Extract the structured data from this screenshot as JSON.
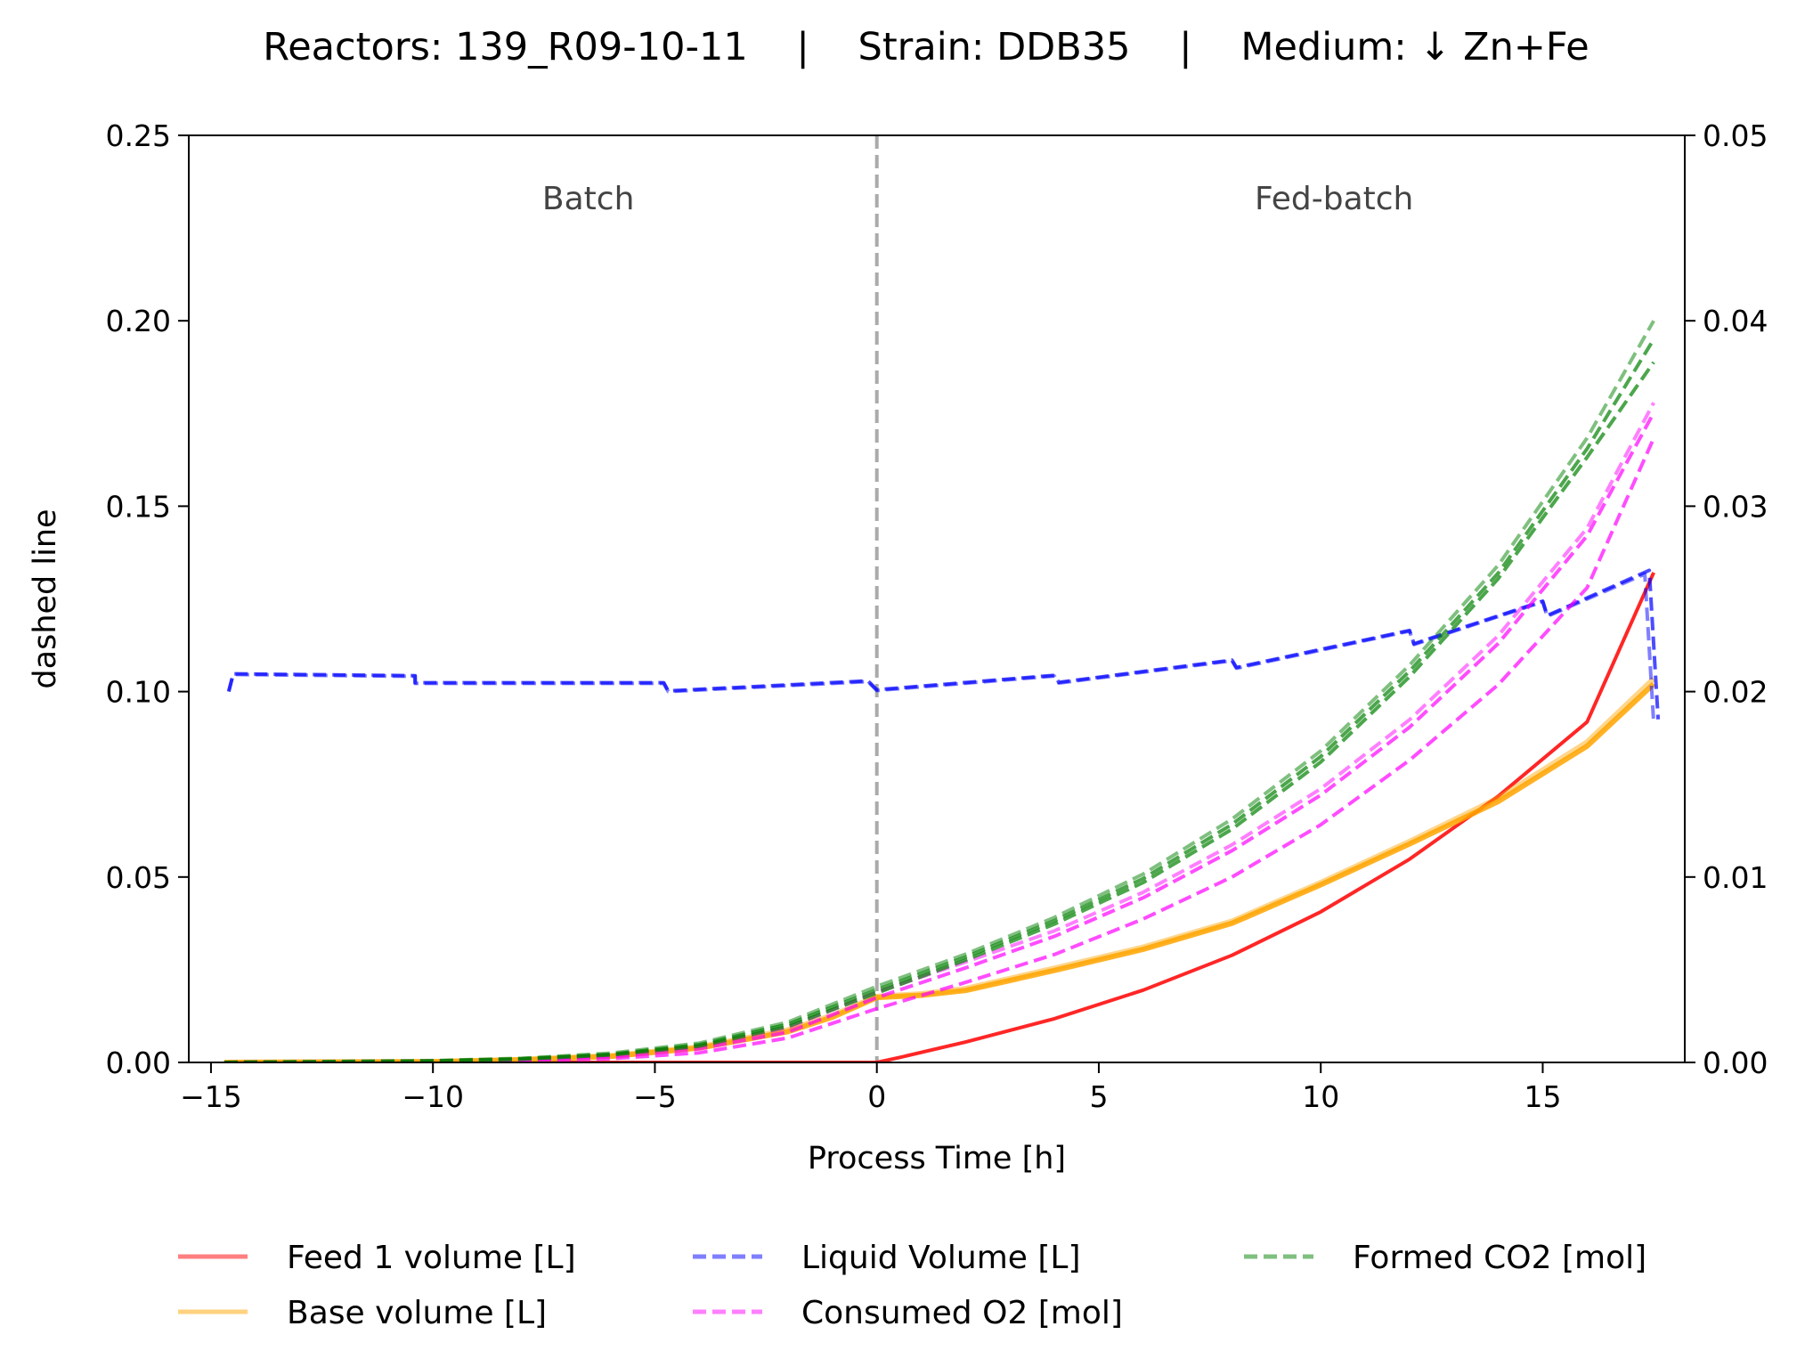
{
  "chart_data": {
    "type": "line",
    "title": "Reactors: 139_R09-10-11    |    Strain: DDB35    |    Medium: ↓ Zn+Fe",
    "xlabel": "Process Time [h]",
    "ylabel": "dashed line",
    "xlim": [
      -15.5,
      18.2
    ],
    "ylim": [
      0,
      0.25
    ],
    "y2lim": [
      0,
      0.05
    ],
    "x_ticks": [
      -15,
      -10,
      -5,
      0,
      5,
      10,
      15
    ],
    "x_tick_labels": [
      "−15",
      "−10",
      "−5",
      "0",
      "5",
      "10",
      "15"
    ],
    "y_ticks": [
      0,
      0.05,
      0.1,
      0.15,
      0.2,
      0.25
    ],
    "y_tick_labels": [
      "0.00",
      "0.05",
      "0.10",
      "0.15",
      "0.20",
      "0.25"
    ],
    "y2_ticks": [
      0,
      0.01,
      0.02,
      0.03,
      0.04,
      0.05
    ],
    "y2_tick_labels": [
      "0.00",
      "0.01",
      "0.02",
      "0.03",
      "0.04",
      "0.05"
    ],
    "grid": false,
    "legend_position": "bottom-center",
    "phase_divider_x": 0,
    "phases": [
      {
        "label": "Batch",
        "x": -6.5
      },
      {
        "label": "Fed-batch",
        "x": 10.3
      }
    ],
    "series": [
      {
        "name": "Feed 1 volume [L]",
        "axis": "left",
        "style": "solid",
        "color": "#ff0000",
        "legend_alpha": 0.5,
        "lines": [
          {
            "x": [
              -14.7,
              -10,
              -5,
              -2,
              0,
              0.5,
              2,
              4,
              6,
              8,
              10,
              12,
              14,
              16,
              17.5
            ],
            "y": [
              0,
              0,
              0,
              0,
              0,
              0.0013,
              0.0055,
              0.0118,
              0.0195,
              0.0289,
              0.0406,
              0.0548,
              0.0718,
              0.0918,
              0.1321
            ]
          }
        ]
      },
      {
        "name": "Base volume [L]",
        "axis": "left",
        "style": "solid",
        "color": "#ffa500",
        "legend_alpha": 0.5,
        "lines": [
          {
            "x": [
              -14.7,
              -10,
              -8,
              -6,
              -4,
              -2,
              -1,
              0,
              1,
              2,
              4,
              6,
              8,
              10,
              12,
              14,
              16,
              17.5
            ],
            "y": [
              0,
              0.0002,
              0.0007,
              0.0016,
              0.0039,
              0.0083,
              0.0122,
              0.0175,
              0.0181,
              0.0194,
              0.0248,
              0.0305,
              0.0375,
              0.0479,
              0.0589,
              0.0704,
              0.0853,
              0.1021
            ]
          },
          {
            "x": [
              -14.7,
              -10,
              -8,
              -6,
              -4,
              -2,
              -1,
              0,
              1,
              2,
              4,
              6,
              8,
              10,
              12,
              14,
              16,
              17.5
            ],
            "y": [
              0,
              0.0002,
              0.0008,
              0.0018,
              0.0042,
              0.0088,
              0.0127,
              0.0178,
              0.0185,
              0.0199,
              0.0254,
              0.0311,
              0.0381,
              0.0485,
              0.0596,
              0.0713,
              0.0864,
              0.1035
            ]
          }
        ]
      },
      {
        "name": "Liquid Volume [L]",
        "axis": "left",
        "style": "dashed",
        "color": "#0000ff",
        "legend_alpha": 0.5,
        "lines": [
          {
            "x": [
              -14.6,
              -14.5,
              -10.4,
              -10.4,
              -4.8,
              -4.7,
              -0.2,
              0,
              4,
              4.1,
              8,
              8.1,
              12,
              12.1,
              15,
              15.1,
              17.3,
              17.5
            ],
            "y": [
              0.1002,
              0.1046,
              0.1041,
              0.1022,
              0.1022,
              0.1,
              0.1027,
              0.1003,
              0.1042,
              0.1023,
              0.1083,
              0.1063,
              0.1163,
              0.1127,
              0.1242,
              0.1203,
              0.1317,
              0.0915
            ]
          },
          {
            "x": [
              -14.6,
              -14.5,
              -10.4,
              -10.4,
              -4.8,
              -4.7,
              -0.2,
              0,
              4,
              4.1,
              8,
              8.1,
              12,
              12.1,
              15,
              15.1,
              17.4,
              17.6
            ],
            "y": [
              0.1,
              0.1048,
              0.1043,
              0.1024,
              0.1024,
              0.1002,
              0.1029,
              0.1005,
              0.1044,
              0.1025,
              0.1085,
              0.1065,
              0.1165,
              0.1129,
              0.1244,
              0.1205,
              0.1327,
              0.0925
            ]
          }
        ]
      },
      {
        "name": "Consumed O2 [mol]",
        "axis": "left",
        "style": "dashed",
        "color": "#ff00ff",
        "legend_alpha": 0.5,
        "lines": [
          {
            "x": [
              -14.7,
              -10,
              -8,
              -6,
              -4,
              -2,
              0,
              2,
              4,
              6,
              8,
              10,
              12,
              14,
              16,
              17.5
            ],
            "y": [
              0,
              0.0004,
              0.0009,
              0.0021,
              0.0044,
              0.0094,
              0.019,
              0.0271,
              0.0355,
              0.0459,
              0.0587,
              0.0738,
              0.0924,
              0.1151,
              0.1441,
              0.1779
            ]
          },
          {
            "x": [
              -14.7,
              -10,
              -8,
              -6,
              -4,
              -2,
              0,
              2,
              4,
              6,
              8,
              10,
              12,
              14,
              16,
              17.5
            ],
            "y": [
              0,
              0.0002,
              0.0004,
              0.001,
              0.0026,
              0.0066,
              0.0145,
              0.0216,
              0.0291,
              0.0387,
              0.05,
              0.0641,
              0.0815,
              0.1019,
              0.128,
              0.1683
            ]
          },
          {
            "x": [
              -14.7,
              -10,
              -8,
              -6,
              -4,
              -2,
              0,
              2,
              4,
              6,
              8,
              10,
              12,
              14,
              16,
              17.5
            ],
            "y": [
              0,
              0.0003,
              0.0007,
              0.0016,
              0.0037,
              0.0082,
              0.0175,
              0.0255,
              0.034,
              0.0444,
              0.0571,
              0.0721,
              0.0904,
              0.113,
              0.142,
              0.1752
            ]
          }
        ]
      },
      {
        "name": "Formed CO2 [mol]",
        "axis": "left",
        "style": "dashed",
        "color": "#008000",
        "legend_alpha": 0.5,
        "lines": [
          {
            "x": [
              -14.7,
              -10,
              -8,
              -6,
              -4,
              -2,
              0,
              2,
              4,
              6,
              8,
              10,
              12,
              14,
              16,
              17.5
            ],
            "y": [
              0,
              0.0005,
              0.0011,
              0.0025,
              0.0052,
              0.0109,
              0.0205,
              0.0292,
              0.0391,
              0.0508,
              0.0656,
              0.084,
              0.1071,
              0.1341,
              0.1684,
              0.2
            ]
          },
          {
            "x": [
              -14.7,
              -10,
              -8,
              -6,
              -4,
              -2,
              0,
              2,
              4,
              6,
              8,
              10,
              12,
              14,
              16,
              17.5
            ],
            "y": [
              0,
              0.0003,
              0.0009,
              0.002,
              0.0044,
              0.0097,
              0.0187,
              0.0276,
              0.0373,
              0.0485,
              0.0629,
              0.081,
              0.104,
              0.1305,
              0.1632,
              0.1888
            ]
          },
          {
            "x": [
              -14.7,
              -10,
              -8,
              -6,
              -4,
              -2,
              0,
              2,
              4,
              6,
              8,
              10,
              12,
              14,
              16,
              17.5
            ],
            "y": [
              0,
              0.0004,
              0.001,
              0.0022,
              0.0048,
              0.0103,
              0.0196,
              0.0284,
              0.0382,
              0.0496,
              0.0642,
              0.0825,
              0.1055,
              0.132,
              0.1655,
              0.195
            ]
          }
        ]
      }
    ]
  }
}
